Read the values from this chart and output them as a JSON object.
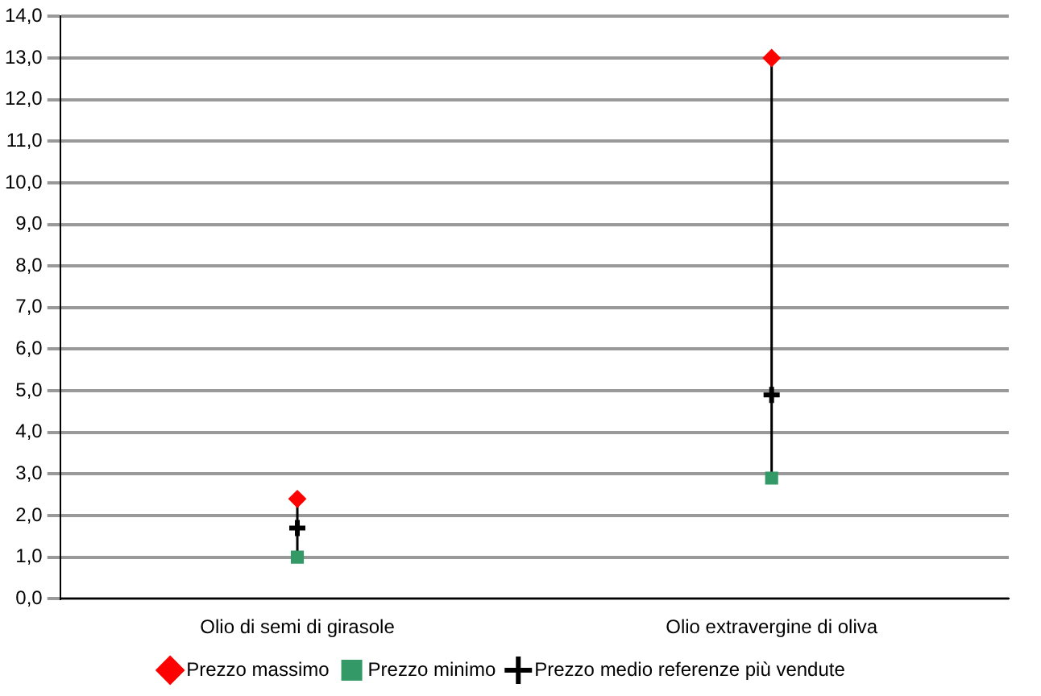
{
  "chart_data": {
    "type": "scatter",
    "categories": [
      "Olio di semi di girasole",
      "Olio extravergine di oliva"
    ],
    "series": [
      {
        "name": "Prezzo massimo",
        "color": "#ff0000",
        "marker": "diamond",
        "values": [
          2.4,
          13.0
        ]
      },
      {
        "name": "Prezzo minimo",
        "color": "#339966",
        "marker": "square",
        "values": [
          1.0,
          2.9
        ]
      },
      {
        "name": "Prezzo medio referenze più vendute",
        "color": "#000000",
        "marker": "cross",
        "values": [
          1.7,
          4.9
        ]
      }
    ],
    "ylim": [
      0,
      14
    ],
    "yticks": [
      {
        "value": 0,
        "label": "0,0"
      },
      {
        "value": 1,
        "label": "1,0"
      },
      {
        "value": 2,
        "label": "2,0"
      },
      {
        "value": 3,
        "label": "3,0"
      },
      {
        "value": 4,
        "label": "4,0"
      },
      {
        "value": 5,
        "label": "5,0"
      },
      {
        "value": 6,
        "label": "6,0"
      },
      {
        "value": 7,
        "label": "7,0"
      },
      {
        "value": 8,
        "label": "8,0"
      },
      {
        "value": 9,
        "label": "9,0"
      },
      {
        "value": 10,
        "label": "10,0"
      },
      {
        "value": 11,
        "label": "11,0"
      },
      {
        "value": 12,
        "label": "12,0"
      },
      {
        "value": 13,
        "label": "13,0"
      },
      {
        "value": 14,
        "label": "14,0"
      }
    ],
    "grid": "y",
    "legend": "bottom"
  }
}
